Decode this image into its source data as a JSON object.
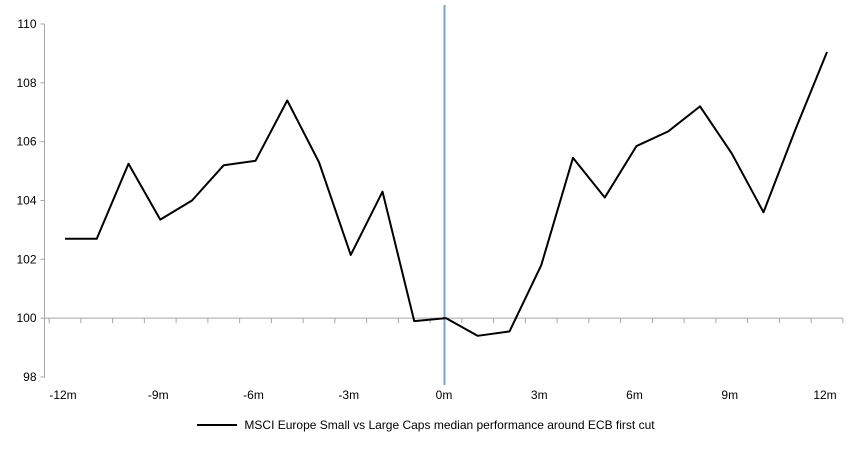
{
  "chart_data": {
    "type": "line",
    "title": "",
    "x_label": "",
    "y_label": "",
    "x_unit_suffix": "m",
    "x_months": [
      -12,
      -11,
      -10,
      -9,
      -8,
      -7,
      -6,
      -5,
      -4,
      -3,
      -2,
      -1,
      0,
      1,
      2,
      3,
      4,
      5,
      6,
      7,
      8,
      9,
      10,
      11,
      12
    ],
    "series": [
      {
        "name": "MSCI Europe Small vs Large Caps median performance around ECB first cut",
        "values": [
          102.7,
          102.7,
          105.25,
          103.35,
          104.0,
          105.2,
          105.35,
          107.4,
          105.3,
          102.15,
          104.3,
          99.9,
          100.0,
          99.4,
          99.55,
          101.8,
          105.45,
          104.1,
          105.85,
          106.35,
          107.2,
          105.6,
          103.6,
          106.4,
          109.05
        ],
        "color": "#000000"
      }
    ],
    "ylim": [
      98,
      110
    ],
    "y_ticks": [
      98,
      100,
      102,
      104,
      106,
      108,
      110
    ],
    "x_tick_months": [
      -12,
      -9,
      -6,
      -3,
      0,
      3,
      6,
      9,
      12
    ],
    "x_tick_labels": [
      "-12m",
      "-9m",
      "-6m",
      "-3m",
      "0m",
      "3m",
      "6m",
      "9m",
      "12m"
    ],
    "baseline_value": 100,
    "event_line_month": 0,
    "grid": "off",
    "legend_position": "bottom-center",
    "colors": {
      "series_line": "#000000",
      "event_line": "#7ba3cc",
      "axis_line": "#a6a6a6",
      "baseline": "#a6a6a6",
      "tick": "#a6a6a6",
      "label_text": "#000000"
    }
  },
  "legend": {
    "label": "MSCI Europe Small vs Large Caps median performance around ECB first cut"
  }
}
